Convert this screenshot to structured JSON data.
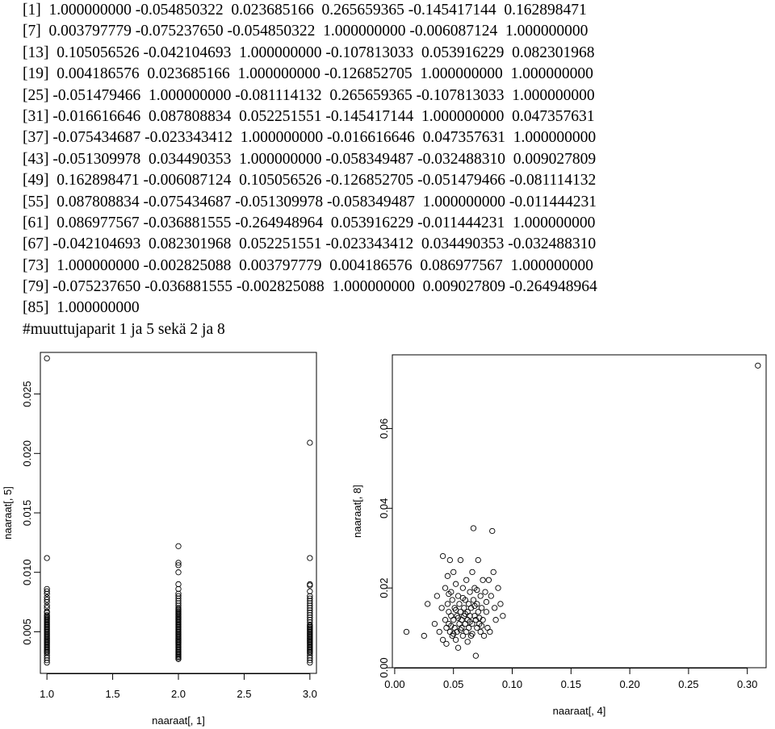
{
  "console": {
    "lines": [
      "[1]  1.000000000 -0.054850322  0.023685166  0.265659365 -0.145417144  0.162898471",
      "[7]  0.003797779 -0.075237650 -0.054850322  1.000000000 -0.006087124  1.000000000",
      "[13]  0.105056526 -0.042104693  1.000000000 -0.107813033  0.053916229  0.082301968",
      "[19]  0.004186576  0.023685166  1.000000000 -0.126852705  1.000000000  1.000000000",
      "[25] -0.051479466  1.000000000 -0.081114132  0.265659365 -0.107813033  1.000000000",
      "[31] -0.016616646  0.087808834  0.052251551 -0.145417144  1.000000000  0.047357631",
      "[37] -0.075434687 -0.023343412  1.000000000 -0.016616646  0.047357631  1.000000000",
      "[43] -0.051309978  0.034490353  1.000000000 -0.058349487 -0.032488310  0.009027809",
      "[49]  0.162898471 -0.006087124  0.105056526 -0.126852705 -0.051479466 -0.081114132",
      "[55]  0.087808834 -0.075434687 -0.051309978 -0.058349487  1.000000000 -0.011444231",
      "[61]  0.086977567 -0.036881555 -0.264948964  0.053916229 -0.011444231  1.000000000",
      "[67] -0.042104693  0.082301968  0.052251551 -0.023343412  0.034490353 -0.032488310",
      "[73]  1.000000000 -0.002825088  0.003797779  0.004186576  0.086977567  1.000000000",
      "[79] -0.075237650 -0.036881555 -0.002825088  1.000000000  0.009027809 -0.264948964",
      "[85]  1.000000000",
      "#muuttujaparit 1 ja 5 sekä 2 ja 8"
    ]
  },
  "chart_data": [
    {
      "type": "scatter",
      "title": "",
      "xlabel": "naaraat[, 1]",
      "ylabel": "naaraat[, 5]",
      "xlim": [
        0.95,
        3.05
      ],
      "ylim": [
        0.0015,
        0.0285
      ],
      "xticks": [
        "1.0",
        "1.5",
        "2.0",
        "2.5",
        "3.0"
      ],
      "yticks": [
        "0.005",
        "0.010",
        "0.015",
        "0.020",
        "0.025"
      ],
      "grid": false,
      "points": [
        [
          1,
          0.028
        ],
        [
          1,
          0.0112
        ],
        [
          1,
          0.0086
        ],
        [
          1,
          0.0084
        ],
        [
          1,
          0.0082
        ],
        [
          1,
          0.0079
        ],
        [
          1,
          0.0077
        ],
        [
          1,
          0.0075
        ],
        [
          1,
          0.0072
        ],
        [
          1,
          0.007
        ],
        [
          1,
          0.0067
        ],
        [
          1,
          0.0066
        ],
        [
          1,
          0.0064
        ],
        [
          1,
          0.0063
        ],
        [
          1,
          0.0062
        ],
        [
          1,
          0.0061
        ],
        [
          1,
          0.006
        ],
        [
          1,
          0.0059
        ],
        [
          1,
          0.0058
        ],
        [
          1,
          0.0057
        ],
        [
          1,
          0.0056
        ],
        [
          1,
          0.0055
        ],
        [
          1,
          0.0054
        ],
        [
          1,
          0.0053
        ],
        [
          1,
          0.0052
        ],
        [
          1,
          0.0051
        ],
        [
          1,
          0.005
        ],
        [
          1,
          0.0049
        ],
        [
          1,
          0.0048
        ],
        [
          1,
          0.0047
        ],
        [
          1,
          0.0046
        ],
        [
          1,
          0.0045
        ],
        [
          1,
          0.0044
        ],
        [
          1,
          0.0043
        ],
        [
          1,
          0.0042
        ],
        [
          1,
          0.0041
        ],
        [
          1,
          0.004
        ],
        [
          1,
          0.0039
        ],
        [
          1,
          0.0038
        ],
        [
          1,
          0.0037
        ],
        [
          1,
          0.0036
        ],
        [
          1,
          0.0035
        ],
        [
          1,
          0.0034
        ],
        [
          1,
          0.0033
        ],
        [
          1,
          0.0032
        ],
        [
          1,
          0.003
        ],
        [
          1,
          0.0028
        ],
        [
          1,
          0.0026
        ],
        [
          1,
          0.0024
        ],
        [
          2,
          0.0122
        ],
        [
          2,
          0.0108
        ],
        [
          2,
          0.0106
        ],
        [
          2,
          0.01
        ],
        [
          2,
          0.009
        ],
        [
          2,
          0.0086
        ],
        [
          2,
          0.0082
        ],
        [
          2,
          0.008
        ],
        [
          2,
          0.0078
        ],
        [
          2,
          0.0076
        ],
        [
          2,
          0.0074
        ],
        [
          2,
          0.0072
        ],
        [
          2,
          0.007
        ],
        [
          2,
          0.0069
        ],
        [
          2,
          0.0068
        ],
        [
          2,
          0.0067
        ],
        [
          2,
          0.0066
        ],
        [
          2,
          0.0065
        ],
        [
          2,
          0.0064
        ],
        [
          2,
          0.0063
        ],
        [
          2,
          0.0062
        ],
        [
          2,
          0.0061
        ],
        [
          2,
          0.006
        ],
        [
          2,
          0.0059
        ],
        [
          2,
          0.0058
        ],
        [
          2,
          0.0057
        ],
        [
          2,
          0.0056
        ],
        [
          2,
          0.0055
        ],
        [
          2,
          0.0054
        ],
        [
          2,
          0.0053
        ],
        [
          2,
          0.0052
        ],
        [
          2,
          0.0051
        ],
        [
          2,
          0.005
        ],
        [
          2,
          0.0049
        ],
        [
          2,
          0.0048
        ],
        [
          2,
          0.0047
        ],
        [
          2,
          0.0046
        ],
        [
          2,
          0.0045
        ],
        [
          2,
          0.0044
        ],
        [
          2,
          0.0043
        ],
        [
          2,
          0.0042
        ],
        [
          2,
          0.0041
        ],
        [
          2,
          0.004
        ],
        [
          2,
          0.0039
        ],
        [
          2,
          0.0038
        ],
        [
          2,
          0.0037
        ],
        [
          2,
          0.0036
        ],
        [
          2,
          0.0035
        ],
        [
          2,
          0.0034
        ],
        [
          2,
          0.0033
        ],
        [
          2,
          0.0032
        ],
        [
          2,
          0.0031
        ],
        [
          2,
          0.003
        ],
        [
          2,
          0.0029
        ],
        [
          2,
          0.0028
        ],
        [
          2,
          0.0027
        ],
        [
          3,
          0.0209
        ],
        [
          3,
          0.0112
        ],
        [
          3,
          0.009
        ],
        [
          3,
          0.0089
        ],
        [
          3,
          0.0084
        ],
        [
          3,
          0.008
        ],
        [
          3,
          0.0078
        ],
        [
          3,
          0.0076
        ],
        [
          3,
          0.0074
        ],
        [
          3,
          0.0072
        ],
        [
          3,
          0.007
        ],
        [
          3,
          0.0068
        ],
        [
          3,
          0.0066
        ],
        [
          3,
          0.0064
        ],
        [
          3,
          0.0062
        ],
        [
          3,
          0.006
        ],
        [
          3,
          0.0058
        ],
        [
          3,
          0.0056
        ],
        [
          3,
          0.0055
        ],
        [
          3,
          0.0054
        ],
        [
          3,
          0.0053
        ],
        [
          3,
          0.0052
        ],
        [
          3,
          0.0051
        ],
        [
          3,
          0.005
        ],
        [
          3,
          0.0049
        ],
        [
          3,
          0.0048
        ],
        [
          3,
          0.0047
        ],
        [
          3,
          0.0046
        ],
        [
          3,
          0.0045
        ],
        [
          3,
          0.0044
        ],
        [
          3,
          0.0043
        ],
        [
          3,
          0.0042
        ],
        [
          3,
          0.0041
        ],
        [
          3,
          0.004
        ],
        [
          3,
          0.0039
        ],
        [
          3,
          0.0038
        ],
        [
          3,
          0.0037
        ],
        [
          3,
          0.0036
        ],
        [
          3,
          0.0035
        ],
        [
          3,
          0.0034
        ],
        [
          3,
          0.0033
        ],
        [
          3,
          0.0032
        ],
        [
          3,
          0.003
        ],
        [
          3,
          0.0028
        ],
        [
          3,
          0.0026
        ],
        [
          3,
          0.0024
        ]
      ]
    },
    {
      "type": "scatter",
      "title": "",
      "xlabel": "naaraat[, 4]",
      "ylabel": "naaraat[, 8]",
      "xlim": [
        -0.002,
        0.316
      ],
      "ylim": [
        0.0,
        0.0785
      ],
      "xticks": [
        "0.00",
        "0.05",
        "0.10",
        "0.15",
        "0.20",
        "0.25",
        "0.30"
      ],
      "yticks": [
        "0.00",
        "0.02",
        "0.04",
        "0.06"
      ],
      "grid": false,
      "points": [
        [
          0.309,
          0.0758
        ],
        [
          0.01,
          0.009
        ],
        [
          0.025,
          0.008
        ],
        [
          0.028,
          0.016
        ],
        [
          0.034,
          0.011
        ],
        [
          0.036,
          0.018
        ],
        [
          0.038,
          0.009
        ],
        [
          0.04,
          0.015
        ],
        [
          0.041,
          0.028
        ],
        [
          0.041,
          0.007
        ],
        [
          0.043,
          0.02
        ],
        [
          0.043,
          0.012
        ],
        [
          0.044,
          0.01
        ],
        [
          0.044,
          0.006
        ],
        [
          0.045,
          0.023
        ],
        [
          0.045,
          0.016
        ],
        [
          0.046,
          0.014
        ],
        [
          0.046,
          0.011
        ],
        [
          0.047,
          0.027
        ],
        [
          0.047,
          0.009
        ],
        [
          0.048,
          0.019
        ],
        [
          0.048,
          0.013
        ],
        [
          0.049,
          0.008
        ],
        [
          0.049,
          0.017
        ],
        [
          0.05,
          0.024
        ],
        [
          0.05,
          0.012
        ],
        [
          0.051,
          0.01
        ],
        [
          0.051,
          0.015
        ],
        [
          0.052,
          0.007
        ],
        [
          0.052,
          0.021
        ],
        [
          0.053,
          0.013
        ],
        [
          0.053,
          0.009
        ],
        [
          0.054,
          0.005
        ],
        [
          0.054,
          0.018
        ],
        [
          0.055,
          0.011
        ],
        [
          0.055,
          0.016
        ],
        [
          0.056,
          0.014
        ],
        [
          0.056,
          0.027
        ],
        [
          0.057,
          0.01
        ],
        [
          0.057,
          0.012
        ],
        [
          0.058,
          0.008
        ],
        [
          0.058,
          0.02
        ],
        [
          0.059,
          0.015
        ],
        [
          0.059,
          0.013
        ],
        [
          0.06,
          0.011
        ],
        [
          0.06,
          0.017
        ],
        [
          0.061,
          0.009
        ],
        [
          0.061,
          0.022
        ],
        [
          0.062,
          0.014
        ],
        [
          0.062,
          0.012
        ],
        [
          0.063,
          0.016
        ],
        [
          0.063,
          0.01
        ],
        [
          0.064,
          0.019
        ],
        [
          0.064,
          0.013
        ],
        [
          0.065,
          0.008
        ],
        [
          0.065,
          0.015
        ],
        [
          0.066,
          0.011
        ],
        [
          0.066,
          0.024
        ],
        [
          0.067,
          0.017
        ],
        [
          0.067,
          0.035
        ],
        [
          0.068,
          0.013
        ],
        [
          0.068,
          0.02
        ],
        [
          0.069,
          0.003
        ],
        [
          0.069,
          0.012
        ],
        [
          0.07,
          0.016
        ],
        [
          0.07,
          0.01
        ],
        [
          0.071,
          0.014
        ],
        [
          0.071,
          0.027
        ],
        [
          0.072,
          0.011
        ],
        [
          0.073,
          0.018
        ],
        [
          0.073,
          0.009
        ],
        [
          0.074,
          0.015
        ],
        [
          0.075,
          0.022
        ],
        [
          0.075,
          0.012
        ],
        [
          0.076,
          0.008
        ],
        [
          0.077,
          0.019
        ],
        [
          0.078,
          0.014
        ],
        [
          0.079,
          0.01
        ],
        [
          0.08,
          0.022
        ],
        [
          0.081,
          0.009
        ],
        [
          0.082,
          0.018
        ],
        [
          0.083,
          0.0343
        ],
        [
          0.084,
          0.024
        ],
        [
          0.085,
          0.015
        ],
        [
          0.086,
          0.012
        ],
        [
          0.088,
          0.02
        ],
        [
          0.09,
          0.016
        ],
        [
          0.092,
          0.013
        ],
        [
          0.048,
          0.0105
        ],
        [
          0.052,
          0.0145
        ],
        [
          0.056,
          0.0095
        ],
        [
          0.06,
          0.0135
        ],
        [
          0.064,
          0.0115
        ],
        [
          0.068,
          0.0155
        ],
        [
          0.072,
          0.0125
        ],
        [
          0.058,
          0.0175
        ],
        [
          0.062,
          0.0065
        ],
        [
          0.054,
          0.0125
        ],
        [
          0.066,
          0.0085
        ],
        [
          0.07,
          0.0195
        ],
        [
          0.046,
          0.0185
        ],
        [
          0.05,
          0.0085
        ],
        [
          0.074,
          0.0105
        ],
        [
          0.078,
          0.0165
        ]
      ]
    }
  ]
}
